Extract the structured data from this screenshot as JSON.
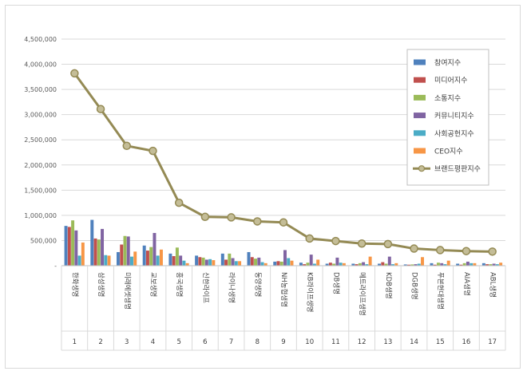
{
  "chart_data": {
    "type": "bar",
    "categories": [
      "한화생명",
      "삼성생명",
      "미래에셋생명",
      "교보생명",
      "흥국생명",
      "신한라이프",
      "라이나생명",
      "동양생명",
      "NH농협생명",
      "KB라이프생명",
      "DB생명",
      "메트라이프생명",
      "KDB생명",
      "DGB생명",
      "푸본현대생명",
      "AIA생명",
      "ABL생명"
    ],
    "ranks": [
      "1",
      "2",
      "3",
      "4",
      "5",
      "6",
      "7",
      "8",
      "9",
      "10",
      "11",
      "12",
      "13",
      "14",
      "15",
      "16",
      "17"
    ],
    "ylim": [
      0,
      4500000
    ],
    "yticks": [
      "-",
      "500,000",
      "1,000,000",
      "1,500,000",
      "2,000,000",
      "2,500,000",
      "3,000,000",
      "3,500,000",
      "4,000,000",
      "4,500,000"
    ],
    "grid": true,
    "legend_position": "right",
    "series": [
      {
        "name": "참여지수",
        "color": "#4f81bd",
        "values": [
          790000,
          910000,
          270000,
          400000,
          240000,
          200000,
          240000,
          270000,
          80000,
          60000,
          40000,
          40000,
          40000,
          25000,
          50000,
          40000,
          50000
        ]
      },
      {
        "name": "미디어지수",
        "color": "#c0504d",
        "values": [
          770000,
          540000,
          420000,
          300000,
          190000,
          170000,
          120000,
          170000,
          90000,
          30000,
          60000,
          30000,
          70000,
          20000,
          20000,
          20000,
          30000
        ]
      },
      {
        "name": "소통지수",
        "color": "#9bbb59",
        "values": [
          900000,
          520000,
          590000,
          370000,
          360000,
          160000,
          240000,
          140000,
          80000,
          60000,
          40000,
          50000,
          40000,
          25000,
          60000,
          50000,
          30000
        ]
      },
      {
        "name": "커뮤니티지수",
        "color": "#8064a2",
        "values": [
          700000,
          730000,
          580000,
          650000,
          200000,
          120000,
          150000,
          160000,
          310000,
          220000,
          160000,
          70000,
          180000,
          30000,
          50000,
          80000,
          40000
        ]
      },
      {
        "name": "사회공헌지수",
        "color": "#4bacc6",
        "values": [
          200000,
          210000,
          180000,
          200000,
          100000,
          130000,
          90000,
          70000,
          150000,
          40000,
          60000,
          30000,
          30000,
          40000,
          30000,
          50000,
          30000
        ]
      },
      {
        "name": "CEO지수",
        "color": "#f79646",
        "values": [
          460000,
          200000,
          280000,
          320000,
          50000,
          110000,
          90000,
          50000,
          100000,
          120000,
          50000,
          180000,
          50000,
          170000,
          100000,
          50000,
          60000
        ]
      },
      {
        "name": "브랜드평판지수",
        "color": "#948a54",
        "type": "line",
        "values": [
          3820000,
          3110000,
          2380000,
          2280000,
          1250000,
          970000,
          960000,
          880000,
          860000,
          540000,
          490000,
          440000,
          430000,
          340000,
          310000,
          290000,
          280000
        ]
      }
    ]
  }
}
